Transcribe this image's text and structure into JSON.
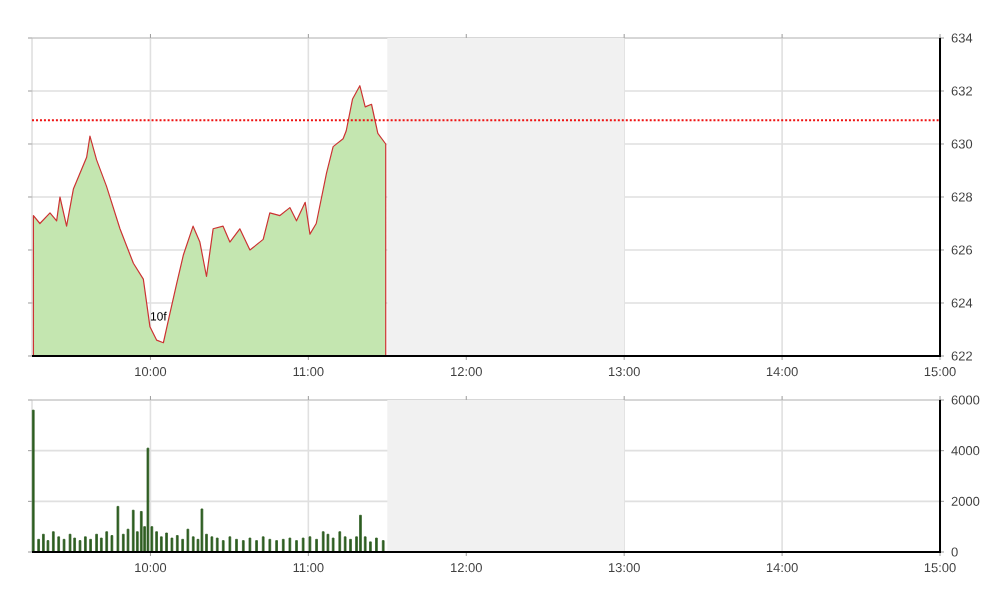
{
  "chart_data": [
    {
      "type": "area",
      "color": "#c4e6b0",
      "x": [
        9.259,
        9.3,
        9.364,
        9.406,
        9.427,
        9.469,
        9.512,
        9.554,
        9.596,
        9.617,
        9.659,
        9.722,
        9.807,
        9.892,
        9.955,
        9.997,
        10.039,
        10.082,
        10.123,
        10.165,
        10.208,
        10.27,
        10.313,
        10.355,
        10.397,
        10.46,
        10.503,
        10.566,
        10.63,
        10.714,
        10.756,
        10.82,
        10.883,
        10.925,
        10.98,
        11.01,
        11.05,
        11.115,
        11.157,
        11.22,
        11.24,
        11.28,
        11.326,
        11.36,
        11.4,
        11.44,
        11.49
      ],
      "values": [
        627.3,
        627.0,
        627.4,
        627.1,
        628.0,
        626.9,
        628.3,
        628.9,
        629.5,
        630.3,
        629.4,
        628.4,
        626.8,
        625.5,
        624.9,
        623.1,
        622.6,
        622.5,
        623.6,
        624.7,
        625.8,
        626.9,
        626.3,
        625.0,
        626.8,
        626.9,
        626.3,
        626.8,
        626.0,
        626.4,
        627.4,
        627.3,
        627.6,
        627.1,
        627.8,
        626.6,
        627.0,
        628.9,
        629.9,
        630.2,
        630.5,
        631.7,
        632.2,
        631.4,
        631.5,
        630.4,
        630.0
      ],
      "xlim": [
        9.25,
        15
      ],
      "ylim": [
        622,
        634
      ],
      "yticks": [
        622,
        624,
        626,
        628,
        630,
        632,
        634
      ],
      "xticks": [
        {
          "value": 10,
          "label": "10:00"
        },
        {
          "value": 11,
          "label": "11:00"
        },
        {
          "value": 12,
          "label": "12:00"
        },
        {
          "value": 13,
          "label": "13:00"
        },
        {
          "value": 14,
          "label": "14:00"
        },
        {
          "value": 15,
          "label": "15:00"
        }
      ],
      "grid": true,
      "ref_lines": [
        {
          "axis": "y",
          "value": 630.9,
          "color": "#ee1111",
          "line_style": "dotted"
        }
      ],
      "bands": [
        {
          "axis": "x",
          "from": 11.5,
          "to": 13,
          "color": "#f1f1f1"
        }
      ],
      "annotations": [
        {
          "text": "10f",
          "x": 10.05,
          "y": 623.5
        }
      ]
    },
    {
      "type": "bar",
      "color": "#2e5e22",
      "x": [
        9.258,
        9.292,
        9.322,
        9.351,
        9.385,
        9.419,
        9.453,
        9.491,
        9.52,
        9.554,
        9.588,
        9.621,
        9.659,
        9.689,
        9.723,
        9.756,
        9.794,
        9.828,
        9.858,
        9.891,
        9.917,
        9.942,
        9.963,
        9.984,
        10.009,
        10.039,
        10.069,
        10.102,
        10.136,
        10.17,
        10.204,
        10.237,
        10.271,
        10.301,
        10.326,
        10.355,
        10.389,
        10.423,
        10.461,
        10.503,
        10.545,
        10.588,
        10.63,
        10.672,
        10.714,
        10.756,
        10.799,
        10.841,
        10.883,
        10.925,
        10.967,
        11.01,
        11.052,
        11.094,
        11.124,
        11.157,
        11.199,
        11.233,
        11.267,
        11.305,
        11.33,
        11.36,
        11.393,
        11.431,
        11.474
      ],
      "values": [
        5600,
        500,
        700,
        450,
        800,
        600,
        500,
        700,
        550,
        450,
        600,
        500,
        700,
        550,
        800,
        650,
        1800,
        700,
        900,
        1650,
        800,
        1600,
        1000,
        4100,
        1000,
        800,
        600,
        750,
        550,
        650,
        500,
        900,
        600,
        500,
        1700,
        700,
        600,
        550,
        450,
        600,
        500,
        450,
        550,
        450,
        600,
        500,
        450,
        500,
        550,
        450,
        550,
        600,
        500,
        800,
        700,
        550,
        800,
        600,
        500,
        600,
        1450,
        600,
        400,
        550,
        450
      ],
      "xlim": [
        9.25,
        15
      ],
      "ylim": [
        0,
        6000
      ],
      "yticks": [
        0,
        2000,
        4000,
        6000
      ],
      "xticks": [
        {
          "value": 10,
          "label": "10:00"
        },
        {
          "value": 11,
          "label": "11:00"
        },
        {
          "value": 12,
          "label": "12:00"
        },
        {
          "value": 13,
          "label": "13:00"
        },
        {
          "value": 14,
          "label": "14:00"
        },
        {
          "value": 15,
          "label": "15:00"
        }
      ],
      "grid": true,
      "bands": [
        {
          "axis": "x",
          "from": 11.5,
          "to": 13,
          "color": "#f1f1f1"
        }
      ]
    }
  ]
}
